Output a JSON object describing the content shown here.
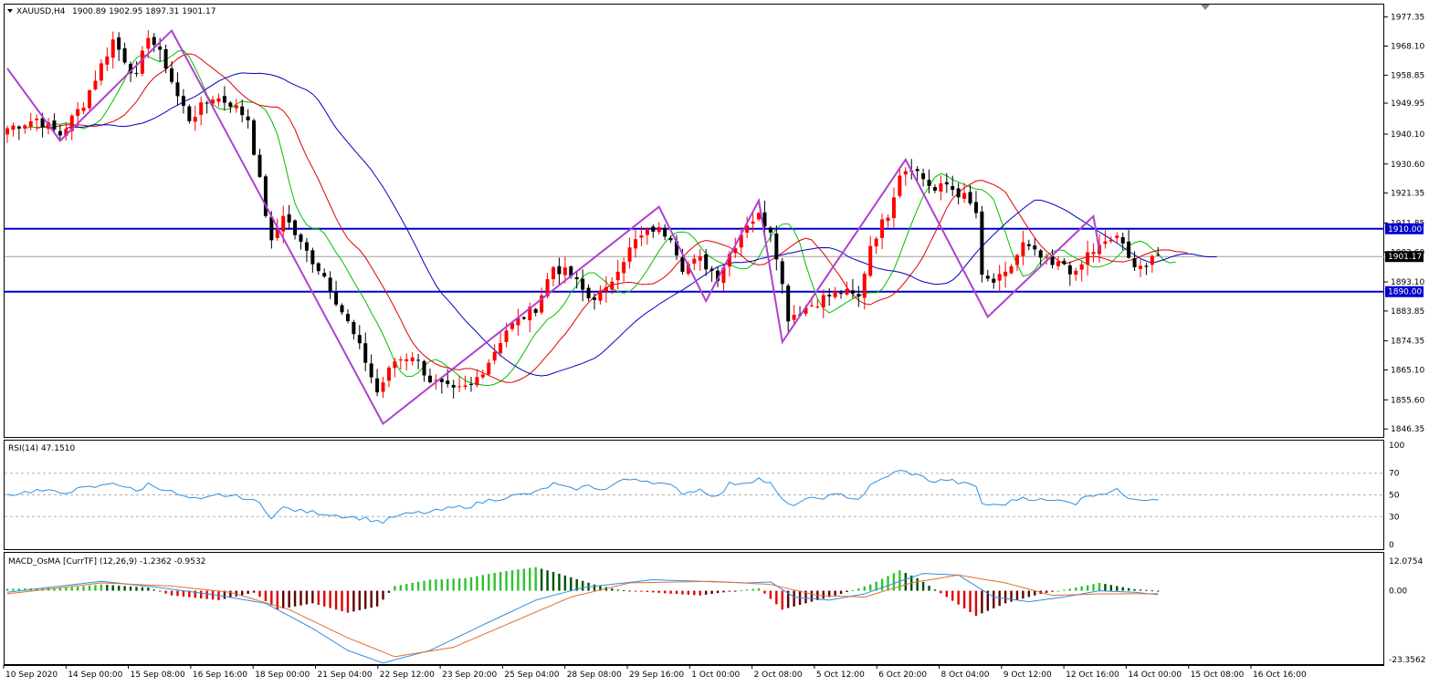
{
  "header": {
    "symbol": "XAUUSD,H4",
    "ohlc": "1900.89 1902.95 1897.31 1901.17"
  },
  "rsi": {
    "title": "RSI(14) 47.1510"
  },
  "macd": {
    "title": "MACD_OsMA [CurrTF] (12,26,9) -1.2362 -0.9532"
  },
  "colors": {
    "bull": "#ff0000",
    "bear": "#000000",
    "ma_fast": "#00c000",
    "ma_mid": "#e00000",
    "ma_slow": "#0000c0",
    "zigzag": "#b040d0",
    "level": "#0000cc",
    "rsi": "#3090e0",
    "macd_line": "#3090e0",
    "signal_line": "#e07030",
    "hist_up": "#30c030",
    "hist_up_weak": "#005000",
    "hist_down": "#e00000",
    "hist_down_weak": "#600000"
  },
  "chart_data": [
    {
      "type": "candlestick",
      "symbol": "XAUUSD",
      "timeframe": "H4",
      "ylim": [
        1843.8,
        1981.3
      ],
      "price_ticks": [
        "1977.35",
        "1968.10",
        "1958.85",
        "1949.95",
        "1940.10",
        "1930.60",
        "1921.35",
        "1911.85",
        "1902.60",
        "1893.10",
        "1883.85",
        "1874.35",
        "1865.10",
        "1855.60",
        "1846.35"
      ],
      "horizontal_levels": [
        {
          "label": "1910.00",
          "value": 1910.0
        },
        {
          "label": "1890.00",
          "value": 1890.0
        }
      ],
      "current_price": {
        "label": "1901.17",
        "value": 1901.17
      },
      "time_labels": [
        "10 Sep 2020",
        "14 Sep 00:00",
        "15 Sep 08:00",
        "16 Sep 16:00",
        "18 Sep 00:00",
        "21 Sep 04:00",
        "22 Sep 12:00",
        "23 Sep 20:00",
        "25 Sep 04:00",
        "28 Sep 08:00",
        "29 Sep 16:00",
        "1 Oct 00:00",
        "2 Oct 08:00",
        "5 Oct 12:00",
        "6 Oct 20:00",
        "8 Oct 04:00",
        "9 Oct 12:00",
        "12 Oct 16:00",
        "14 Oct 00:00",
        "15 Oct 08:00",
        "16 Oct 16:00"
      ],
      "close_path": [
        [
          0,
          1942
        ],
        [
          5,
          1945
        ],
        [
          9,
          1940
        ],
        [
          13,
          1950
        ],
        [
          16,
          1962
        ],
        [
          18,
          1970
        ],
        [
          22,
          1958
        ],
        [
          24,
          1972
        ],
        [
          27,
          1962
        ],
        [
          29,
          1952
        ],
        [
          31,
          1945
        ],
        [
          35,
          1952
        ],
        [
          38,
          1950
        ],
        [
          41,
          1945
        ],
        [
          43,
          1925
        ],
        [
          45,
          1905
        ],
        [
          47,
          1915
        ],
        [
          50,
          1905
        ],
        [
          54,
          1895
        ],
        [
          58,
          1880
        ],
        [
          61,
          1868
        ],
        [
          63,
          1858
        ],
        [
          66,
          1868
        ],
        [
          69,
          1870
        ],
        [
          72,
          1862
        ],
        [
          76,
          1858
        ],
        [
          79,
          1860
        ],
        [
          82,
          1868
        ],
        [
          85,
          1878
        ],
        [
          90,
          1885
        ],
        [
          93,
          1898
        ],
        [
          96,
          1895
        ],
        [
          99,
          1888
        ],
        [
          102,
          1890
        ],
        [
          104,
          1898
        ],
        [
          107,
          1906
        ],
        [
          110,
          1910
        ],
        [
          113,
          1908
        ],
        [
          115,
          1898
        ],
        [
          118,
          1900
        ],
        [
          121,
          1895
        ],
        [
          123,
          1902
        ],
        [
          126,
          1912
        ],
        [
          128,
          1914
        ],
        [
          130,
          1910
        ],
        [
          131,
          1902
        ],
        [
          133,
          1882
        ],
        [
          136,
          1885
        ],
        [
          139,
          1888
        ],
        [
          142,
          1890
        ],
        [
          145,
          1888
        ],
        [
          147,
          1905
        ],
        [
          150,
          1915
        ],
        [
          152,
          1928
        ],
        [
          154,
          1930
        ],
        [
          156,
          1926
        ],
        [
          158,
          1922
        ],
        [
          160,
          1924
        ],
        [
          163,
          1920
        ],
        [
          165,
          1915
        ],
        [
          166,
          1894
        ],
        [
          168,
          1893
        ],
        [
          170,
          1895
        ],
        [
          173,
          1905
        ],
        [
          175,
          1902
        ],
        [
          178,
          1898
        ],
        [
          180,
          1899
        ],
        [
          182,
          1895
        ],
        [
          184,
          1902
        ],
        [
          187,
          1905
        ],
        [
          189,
          1908
        ],
        [
          191,
          1900
        ],
        [
          194,
          1898
        ],
        [
          196,
          1901.17
        ]
      ],
      "zigzag": [
        [
          0,
          1961
        ],
        [
          9,
          1938
        ],
        [
          28,
          1973
        ],
        [
          64,
          1848
        ],
        [
          111,
          1917
        ],
        [
          119,
          1887
        ],
        [
          128,
          1919
        ],
        [
          132,
          1874
        ],
        [
          153,
          1932
        ],
        [
          167,
          1882
        ],
        [
          185,
          1914
        ],
        [
          186,
          1903
        ]
      ]
    },
    {
      "type": "line",
      "indicator": "RSI(14)",
      "ylim": [
        0,
        100
      ],
      "y_ticks": [
        "100",
        "70",
        "50",
        "30",
        "0"
      ],
      "last_value": 47.151,
      "values": [
        [
          0,
          50
        ],
        [
          5,
          54
        ],
        [
          9,
          52
        ],
        [
          13,
          56
        ],
        [
          16,
          58
        ],
        [
          18,
          62
        ],
        [
          22,
          53
        ],
        [
          24,
          60
        ],
        [
          27,
          55
        ],
        [
          30,
          48
        ],
        [
          33,
          45
        ],
        [
          36,
          50
        ],
        [
          40,
          48
        ],
        [
          43,
          42
        ],
        [
          45,
          30
        ],
        [
          47,
          38
        ],
        [
          50,
          35
        ],
        [
          54,
          33
        ],
        [
          58,
          30
        ],
        [
          61,
          28
        ],
        [
          64,
          25
        ],
        [
          66,
          30
        ],
        [
          69,
          33
        ],
        [
          72,
          34
        ],
        [
          76,
          38
        ],
        [
          79,
          40
        ],
        [
          82,
          45
        ],
        [
          85,
          48
        ],
        [
          90,
          52
        ],
        [
          93,
          60
        ],
        [
          96,
          55
        ],
        [
          99,
          58
        ],
        [
          102,
          55
        ],
        [
          104,
          62
        ],
        [
          107,
          65
        ],
        [
          110,
          62
        ],
        [
          113,
          58
        ],
        [
          115,
          52
        ],
        [
          118,
          55
        ],
        [
          121,
          48
        ],
        [
          123,
          60
        ],
        [
          126,
          62
        ],
        [
          128,
          65
        ],
        [
          130,
          60
        ],
        [
          131,
          52
        ],
        [
          133,
          40
        ],
        [
          136,
          45
        ],
        [
          139,
          48
        ],
        [
          142,
          50
        ],
        [
          145,
          46
        ],
        [
          147,
          58
        ],
        [
          150,
          68
        ],
        [
          152,
          72
        ],
        [
          154,
          70
        ],
        [
          156,
          66
        ],
        [
          158,
          62
        ],
        [
          160,
          64
        ],
        [
          163,
          60
        ],
        [
          165,
          58
        ],
        [
          166,
          42
        ],
        [
          168,
          40
        ],
        [
          170,
          42
        ],
        [
          173,
          48
        ],
        [
          175,
          46
        ],
        [
          178,
          44
        ],
        [
          180,
          46
        ],
        [
          182,
          42
        ],
        [
          184,
          50
        ],
        [
          187,
          52
        ],
        [
          189,
          54
        ],
        [
          191,
          48
        ],
        [
          194,
          46
        ],
        [
          196,
          47.15
        ]
      ]
    },
    {
      "type": "bar",
      "indicator": "MACD_OsMA (12,26,9)",
      "ylim": [
        -23.3562,
        12.0754
      ],
      "y_ticks": [
        "12.0754",
        "0.00",
        "-23.3562"
      ],
      "macd_value": -1.2362,
      "signal_value": -0.9532,
      "histogram_path": [
        [
          0,
          0.6
        ],
        [
          10,
          1.0
        ],
        [
          16,
          2.0
        ],
        [
          24,
          1.0
        ],
        [
          28,
          -1.5
        ],
        [
          36,
          -3.0
        ],
        [
          42,
          -0.6
        ],
        [
          46,
          -6.0
        ],
        [
          52,
          -4.0
        ],
        [
          58,
          -7.0
        ],
        [
          63,
          -5.0
        ],
        [
          66,
          1.5
        ],
        [
          72,
          3.5
        ],
        [
          78,
          4.0
        ],
        [
          84,
          6.0
        ],
        [
          90,
          7.5
        ],
        [
          93,
          6.0
        ],
        [
          100,
          2.0
        ],
        [
          104,
          0.3
        ],
        [
          112,
          -0.8
        ],
        [
          118,
          -1.5
        ],
        [
          122,
          -0.5
        ],
        [
          128,
          0.8
        ],
        [
          132,
          -6.0
        ],
        [
          138,
          -3.0
        ],
        [
          142,
          -1.0
        ],
        [
          147,
          2.0
        ],
        [
          152,
          6.5
        ],
        [
          155,
          4.0
        ],
        [
          160,
          -2.0
        ],
        [
          165,
          -8.0
        ],
        [
          170,
          -4.0
        ],
        [
          176,
          -1.0
        ],
        [
          182,
          1.0
        ],
        [
          186,
          2.5
        ],
        [
          192,
          0.5
        ],
        [
          196,
          0.0
        ]
      ],
      "macd_line_path": [
        [
          0,
          -0.5
        ],
        [
          16,
          3.0
        ],
        [
          26,
          1.0
        ],
        [
          36,
          -1.5
        ],
        [
          44,
          -4.0
        ],
        [
          52,
          -12.0
        ],
        [
          58,
          -19.0
        ],
        [
          64,
          -23.0
        ],
        [
          72,
          -19.0
        ],
        [
          82,
          -10.0
        ],
        [
          90,
          -3.0
        ],
        [
          98,
          1.0
        ],
        [
          110,
          3.5
        ],
        [
          118,
          3.0
        ],
        [
          126,
          2.5
        ],
        [
          130,
          2.8
        ],
        [
          134,
          -2.0
        ],
        [
          140,
          -3.0
        ],
        [
          146,
          -1.0
        ],
        [
          152,
          3.0
        ],
        [
          156,
          5.5
        ],
        [
          162,
          5.0
        ],
        [
          168,
          -2.0
        ],
        [
          174,
          -3.5
        ],
        [
          180,
          -2.0
        ],
        [
          186,
          0.0
        ],
        [
          192,
          -0.5
        ],
        [
          196,
          -1.24
        ]
      ],
      "signal_line_path": [
        [
          0,
          -1.0
        ],
        [
          16,
          2.5
        ],
        [
          28,
          1.5
        ],
        [
          38,
          -0.5
        ],
        [
          48,
          -6.0
        ],
        [
          58,
          -15.0
        ],
        [
          66,
          -21.0
        ],
        [
          76,
          -18.0
        ],
        [
          86,
          -10.0
        ],
        [
          96,
          -2.0
        ],
        [
          106,
          2.5
        ],
        [
          120,
          3.0
        ],
        [
          130,
          2.0
        ],
        [
          138,
          -1.5
        ],
        [
          146,
          -2.0
        ],
        [
          154,
          2.5
        ],
        [
          162,
          5.0
        ],
        [
          170,
          2.5
        ],
        [
          178,
          -1.5
        ],
        [
          186,
          -1.0
        ],
        [
          196,
          -0.95
        ]
      ]
    }
  ]
}
